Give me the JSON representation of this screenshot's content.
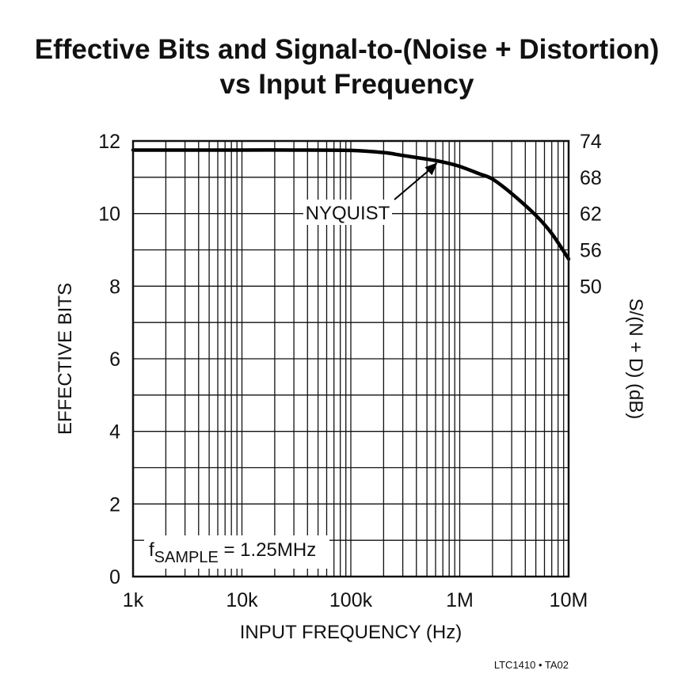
{
  "chart_data": {
    "type": "line",
    "title_line1": "Effective Bits and Signal-to-(Noise + Distortion)",
    "title_line2": "vs Input Frequency",
    "xlabel": "INPUT FREQUENCY (Hz)",
    "ylabel_left": "EFFECTIVE BITS",
    "ylabel_right": "S/(N + D) (dB)",
    "x_scale": "log",
    "xlim": [
      1000,
      10000000
    ],
    "ylim": [
      0,
      12
    ],
    "x_ticks": [
      {
        "value": 1000,
        "label": "1k"
      },
      {
        "value": 10000,
        "label": "10k"
      },
      {
        "value": 100000,
        "label": "100k"
      },
      {
        "value": 1000000,
        "label": "1M"
      },
      {
        "value": 10000000,
        "label": "10M"
      }
    ],
    "y_ticks_left": [
      {
        "value": 0,
        "label": "0"
      },
      {
        "value": 2,
        "label": "2"
      },
      {
        "value": 4,
        "label": "4"
      },
      {
        "value": 6,
        "label": "6"
      },
      {
        "value": 8,
        "label": "8"
      },
      {
        "value": 10,
        "label": "10"
      },
      {
        "value": 12,
        "label": "12"
      }
    ],
    "y_ticks_right": [
      {
        "bits": 12,
        "label": "74"
      },
      {
        "bits": 11,
        "label": "68"
      },
      {
        "bits": 10,
        "label": "62"
      },
      {
        "bits": 9,
        "label": "56"
      },
      {
        "bits": 8,
        "label": "50"
      }
    ],
    "grid": true,
    "series": [
      {
        "name": "Effective Bits",
        "x": [
          1000,
          3000,
          10000,
          30000,
          100000,
          200000,
          300000,
          500000,
          700000,
          1000000,
          1500000,
          2000000,
          3000000,
          5000000,
          7000000,
          10000000
        ],
        "y": [
          11.75,
          11.75,
          11.75,
          11.75,
          11.74,
          11.68,
          11.6,
          11.5,
          11.42,
          11.3,
          11.1,
          10.95,
          10.55,
          9.95,
          9.45,
          8.75
        ]
      }
    ],
    "annotations": {
      "nyquist_label": "NYQUIST",
      "nyquist_x": 625000,
      "nyquist_y": 11.45,
      "fsample_prefix": "f",
      "fsample_subscript": "SAMPLE",
      "fsample_value": " = 1.25MHz"
    },
    "part_code": "LTC1410 • TA02"
  }
}
